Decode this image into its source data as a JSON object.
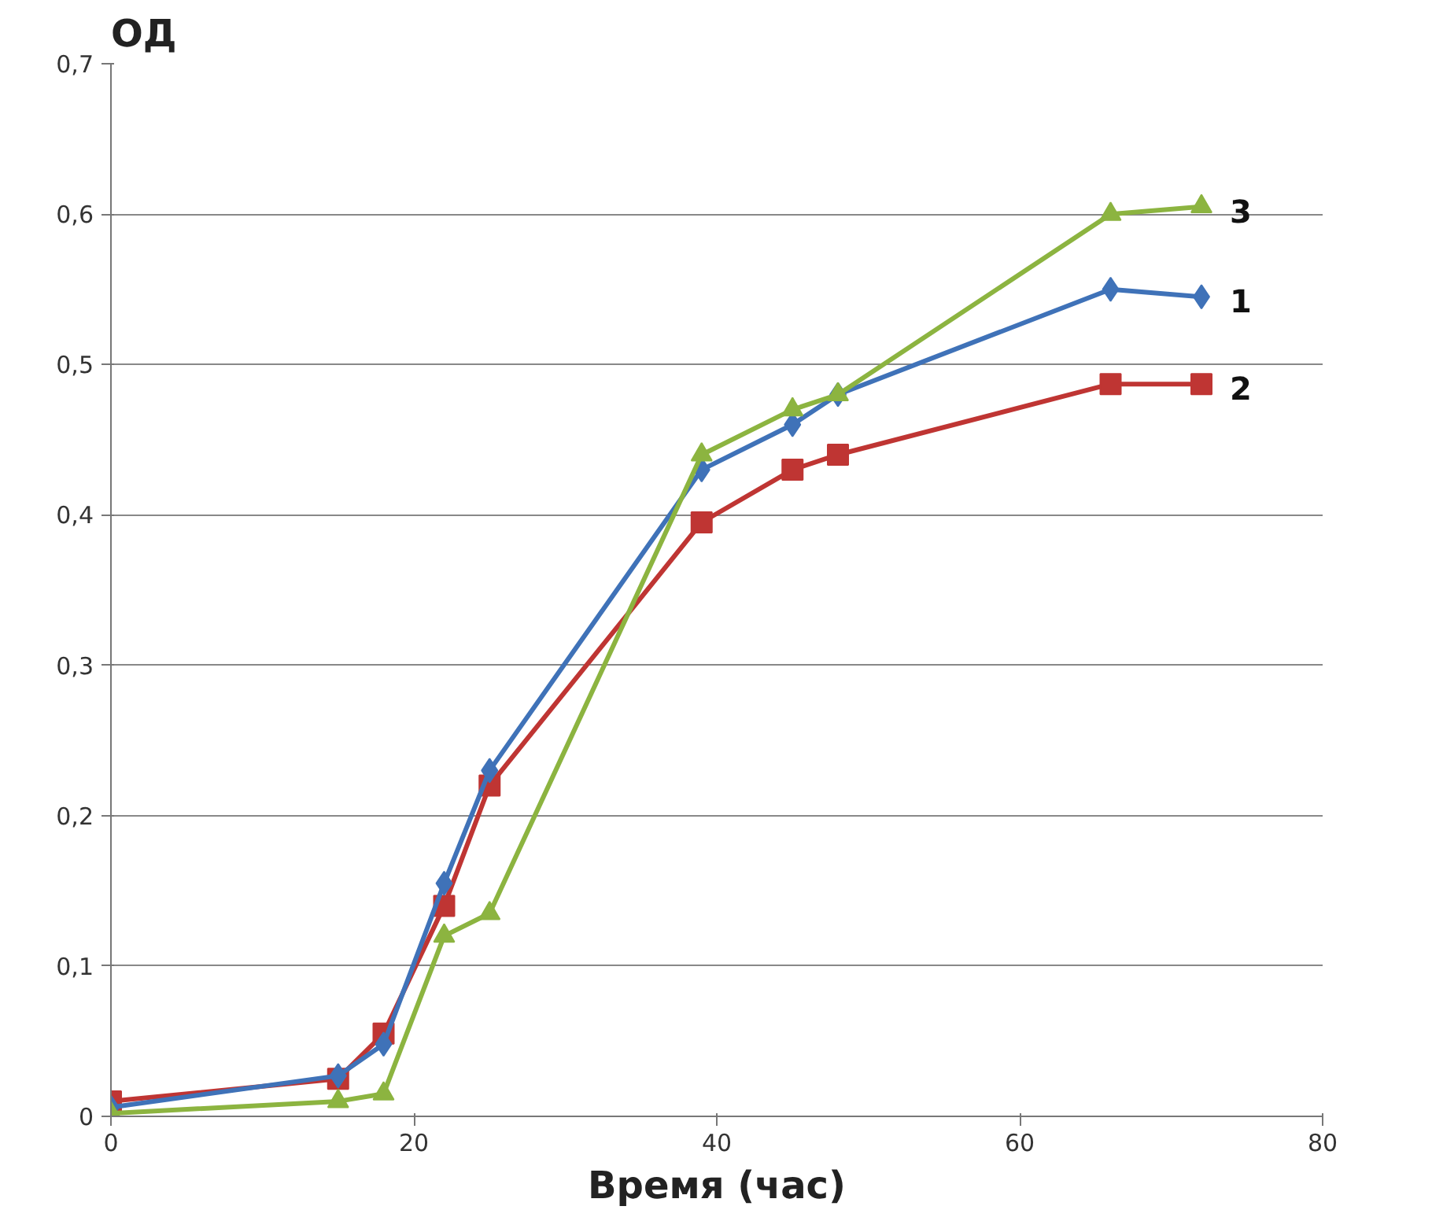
{
  "chart_data": {
    "type": "line",
    "xlabel": "Время (час)",
    "ylabel": "ОД",
    "x": [
      0,
      15,
      18,
      22,
      25,
      39,
      45,
      48,
      66,
      72
    ],
    "series": [
      {
        "name": "2",
        "color": "#bf3533",
        "marker": "square",
        "values": [
          0.01,
          0.025,
          0.055,
          0.14,
          0.22,
          0.395,
          0.43,
          0.44,
          0.487,
          0.487
        ]
      },
      {
        "name": "1",
        "color": "#3f72b8",
        "marker": "diamond",
        "values": [
          0.006,
          0.027,
          0.048,
          0.155,
          0.23,
          0.43,
          0.46,
          0.48,
          0.55,
          0.545
        ]
      },
      {
        "name": "3",
        "color": "#8cb440",
        "marker": "triangle",
        "values": [
          0.002,
          0.01,
          0.015,
          0.12,
          0.135,
          0.44,
          0.47,
          0.48,
          0.6,
          0.605
        ]
      }
    ],
    "xlim": [
      0,
      80
    ],
    "xticks": [
      0,
      20,
      40,
      60,
      80
    ],
    "ylim": [
      0,
      0.7
    ],
    "yticks": [
      0,
      {
        "value": 0.1,
        "label": "0,1"
      },
      {
        "value": 0.2,
        "label": "0,2"
      },
      {
        "value": 0.3,
        "label": "0,3"
      },
      {
        "value": 0.4,
        "label": "0,4"
      },
      {
        "value": 0.5,
        "label": "0,5"
      },
      {
        "value": 0.6,
        "label": "0,6"
      },
      {
        "value": 0.7,
        "label": "0,7"
      }
    ],
    "grid": "y",
    "legend": false,
    "line_style": "solid"
  }
}
